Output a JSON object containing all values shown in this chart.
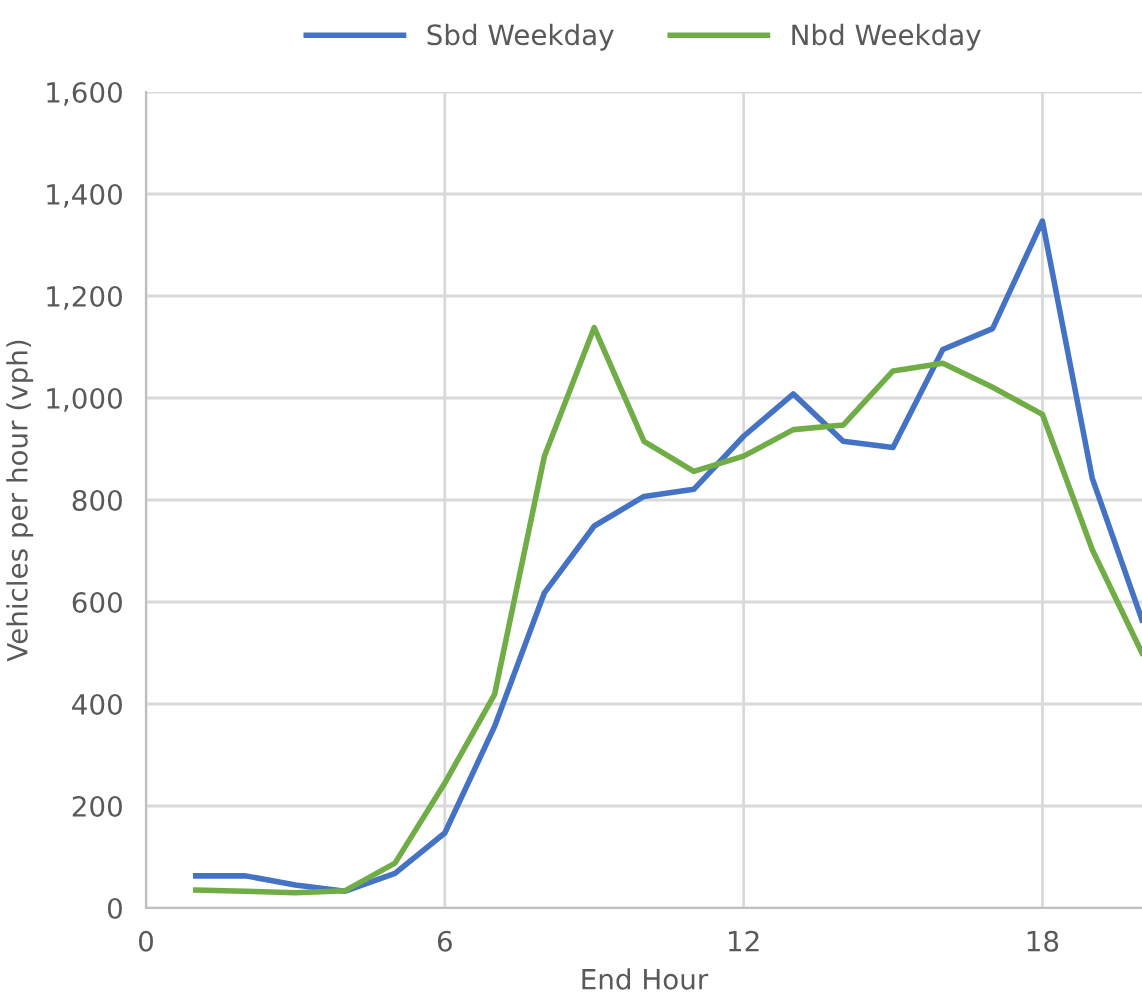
{
  "chart_data": {
    "type": "line",
    "xlabel": "End Hour",
    "ylabel": "Vehicles per hour (vph)",
    "x": [
      1,
      2,
      3,
      4,
      5,
      6,
      7,
      8,
      9,
      10,
      11,
      12,
      13,
      14,
      15,
      16,
      17,
      18,
      19,
      20
    ],
    "series": [
      {
        "name": "Sbd Weekday",
        "color": "#4472c4",
        "values": [
          63,
          63,
          45,
          33,
          68,
          147,
          356,
          618,
          749,
          807,
          821,
          925,
          1008,
          915,
          903,
          1095,
          1136,
          1347,
          843,
          565
        ]
      },
      {
        "name": "Nbd Weekday",
        "color": "#70ad47",
        "values": [
          35,
          33,
          30,
          34,
          88,
          245,
          419,
          886,
          1138,
          915,
          856,
          886,
          938,
          947,
          1053,
          1068,
          1021,
          968,
          703,
          500
        ]
      }
    ],
    "xlim": [
      0,
      20
    ],
    "xticks": [
      0,
      6,
      12,
      18
    ],
    "ylim": [
      0,
      1600
    ],
    "yticks": [
      {
        "value": 0,
        "label": "0"
      },
      {
        "value": 200,
        "label": "200"
      },
      {
        "value": 400,
        "label": "400"
      },
      {
        "value": 600,
        "label": "600"
      },
      {
        "value": 800,
        "label": "800"
      },
      {
        "value": 1000,
        "label": "1,000"
      },
      {
        "value": 1200,
        "label": "1,200"
      },
      {
        "value": 1400,
        "label": "1,400"
      },
      {
        "value": 1600,
        "label": "1,600"
      }
    ],
    "grid": true,
    "legend": "top",
    "marker": "none",
    "line_style": "solid"
  }
}
